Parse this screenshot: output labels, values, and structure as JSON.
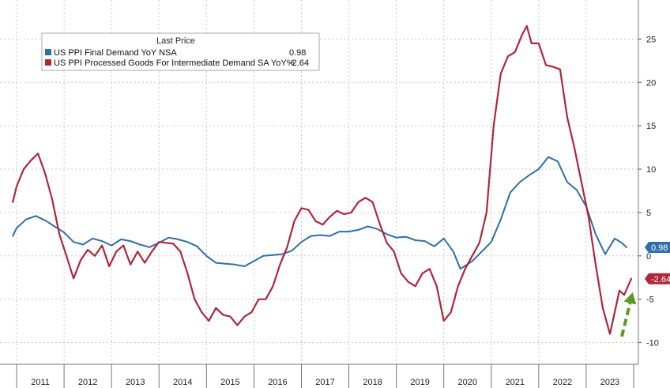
{
  "chart_data": {
    "type": "line",
    "legend": {
      "header": "Last Price",
      "placement": "top-left"
    },
    "series": [
      {
        "name": "US PPI Final Demand YoY NSA",
        "last_value": "0.98",
        "color": "#2f6ea8",
        "points": [
          [
            2010.92,
            2.3
          ],
          [
            2011.0,
            3.2
          ],
          [
            2011.2,
            4.2
          ],
          [
            2011.4,
            4.6
          ],
          [
            2011.6,
            4.1
          ],
          [
            2011.8,
            3.4
          ],
          [
            2012.0,
            2.7
          ],
          [
            2012.2,
            1.6
          ],
          [
            2012.4,
            1.3
          ],
          [
            2012.6,
            2.0
          ],
          [
            2012.8,
            1.7
          ],
          [
            2013.0,
            1.2
          ],
          [
            2013.2,
            1.9
          ],
          [
            2013.4,
            1.7
          ],
          [
            2013.6,
            1.3
          ],
          [
            2013.8,
            1.0
          ],
          [
            2014.0,
            1.5
          ],
          [
            2014.2,
            2.1
          ],
          [
            2014.4,
            1.9
          ],
          [
            2014.6,
            1.6
          ],
          [
            2014.8,
            1.1
          ],
          [
            2015.0,
            0.0
          ],
          [
            2015.2,
            -0.8
          ],
          [
            2015.4,
            -0.9
          ],
          [
            2015.6,
            -1.0
          ],
          [
            2015.8,
            -1.2
          ],
          [
            2016.0,
            -0.6
          ],
          [
            2016.2,
            0.0
          ],
          [
            2016.4,
            0.1
          ],
          [
            2016.6,
            0.2
          ],
          [
            2016.8,
            0.6
          ],
          [
            2017.0,
            1.6
          ],
          [
            2017.2,
            2.3
          ],
          [
            2017.4,
            2.4
          ],
          [
            2017.6,
            2.3
          ],
          [
            2017.8,
            2.8
          ],
          [
            2018.0,
            2.8
          ],
          [
            2018.2,
            3.0
          ],
          [
            2018.4,
            3.4
          ],
          [
            2018.6,
            3.1
          ],
          [
            2018.8,
            2.5
          ],
          [
            2019.0,
            2.1
          ],
          [
            2019.2,
            2.2
          ],
          [
            2019.4,
            1.8
          ],
          [
            2019.6,
            1.7
          ],
          [
            2019.8,
            1.1
          ],
          [
            2020.0,
            2.0
          ],
          [
            2020.2,
            0.5
          ],
          [
            2020.35,
            -1.5
          ],
          [
            2020.6,
            -0.6
          ],
          [
            2020.8,
            0.5
          ],
          [
            2021.0,
            1.6
          ],
          [
            2021.2,
            4.2
          ],
          [
            2021.4,
            7.3
          ],
          [
            2021.6,
            8.5
          ],
          [
            2021.8,
            9.3
          ],
          [
            2022.0,
            10.0
          ],
          [
            2022.2,
            11.4
          ],
          [
            2022.4,
            10.9
          ],
          [
            2022.6,
            8.5
          ],
          [
            2022.8,
            7.6
          ],
          [
            2023.0,
            5.7
          ],
          [
            2023.2,
            2.5
          ],
          [
            2023.4,
            0.2
          ],
          [
            2023.6,
            2.0
          ],
          [
            2023.75,
            1.5
          ],
          [
            2023.85,
            0.98
          ]
        ]
      },
      {
        "name": "US PPI Processed Goods For Intermediate Demand SA YoY%",
        "last_value": "-2.64",
        "color": "#b0263b",
        "points": [
          [
            2010.92,
            6.2
          ],
          [
            2011.0,
            8.0
          ],
          [
            2011.15,
            10.0
          ],
          [
            2011.3,
            11.0
          ],
          [
            2011.45,
            11.8
          ],
          [
            2011.6,
            9.5
          ],
          [
            2011.75,
            6.5
          ],
          [
            2011.9,
            2.5
          ],
          [
            2012.05,
            0.0
          ],
          [
            2012.2,
            -2.6
          ],
          [
            2012.35,
            -0.5
          ],
          [
            2012.5,
            0.7
          ],
          [
            2012.65,
            0.0
          ],
          [
            2012.8,
            1.2
          ],
          [
            2012.95,
            -1.2
          ],
          [
            2013.1,
            0.5
          ],
          [
            2013.25,
            1.2
          ],
          [
            2013.4,
            -1.0
          ],
          [
            2013.55,
            0.5
          ],
          [
            2013.7,
            -0.8
          ],
          [
            2013.85,
            0.5
          ],
          [
            2014.0,
            1.6
          ],
          [
            2014.15,
            1.5
          ],
          [
            2014.3,
            1.4
          ],
          [
            2014.45,
            0.5
          ],
          [
            2014.6,
            -2.0
          ],
          [
            2014.75,
            -5.0
          ],
          [
            2014.9,
            -6.5
          ],
          [
            2015.05,
            -7.5
          ],
          [
            2015.2,
            -6.0
          ],
          [
            2015.35,
            -6.8
          ],
          [
            2015.5,
            -7.0
          ],
          [
            2015.65,
            -8.0
          ],
          [
            2015.8,
            -7.0
          ],
          [
            2015.95,
            -6.5
          ],
          [
            2016.1,
            -5.0
          ],
          [
            2016.25,
            -5.0
          ],
          [
            2016.4,
            -3.5
          ],
          [
            2016.55,
            -1.0
          ],
          [
            2016.7,
            1.0
          ],
          [
            2016.85,
            4.0
          ],
          [
            2017.0,
            5.5
          ],
          [
            2017.15,
            5.3
          ],
          [
            2017.3,
            4.0
          ],
          [
            2017.45,
            3.6
          ],
          [
            2017.6,
            4.5
          ],
          [
            2017.75,
            5.2
          ],
          [
            2017.9,
            4.8
          ],
          [
            2018.05,
            5.0
          ],
          [
            2018.2,
            6.2
          ],
          [
            2018.35,
            6.7
          ],
          [
            2018.5,
            6.2
          ],
          [
            2018.65,
            3.7
          ],
          [
            2018.8,
            1.5
          ],
          [
            2018.95,
            0.5
          ],
          [
            2019.1,
            -2.0
          ],
          [
            2019.25,
            -3.0
          ],
          [
            2019.4,
            -3.5
          ],
          [
            2019.55,
            -2.0
          ],
          [
            2019.7,
            -1.5
          ],
          [
            2019.85,
            -3.5
          ],
          [
            2020.0,
            -7.5
          ],
          [
            2020.15,
            -6.5
          ],
          [
            2020.3,
            -3.5
          ],
          [
            2020.45,
            -1.5
          ],
          [
            2020.6,
            0.0
          ],
          [
            2020.75,
            1.5
          ],
          [
            2020.9,
            5.0
          ],
          [
            2021.05,
            15.0
          ],
          [
            2021.2,
            21.0
          ],
          [
            2021.35,
            23.0
          ],
          [
            2021.5,
            23.5
          ],
          [
            2021.65,
            25.5
          ],
          [
            2021.75,
            26.5
          ],
          [
            2021.85,
            24.5
          ],
          [
            2022.0,
            24.5
          ],
          [
            2022.15,
            22.0
          ],
          [
            2022.3,
            21.8
          ],
          [
            2022.45,
            21.5
          ],
          [
            2022.6,
            16.0
          ],
          [
            2022.75,
            12.5
          ],
          [
            2022.9,
            8.5
          ],
          [
            2023.05,
            4.5
          ],
          [
            2023.2,
            -1.0
          ],
          [
            2023.35,
            -6.0
          ],
          [
            2023.5,
            -9.0
          ],
          [
            2023.6,
            -6.5
          ],
          [
            2023.7,
            -4.0
          ],
          [
            2023.8,
            -4.5
          ],
          [
            2023.88,
            -3.5
          ],
          [
            2023.95,
            -2.64
          ]
        ]
      }
    ],
    "x_ticks": [
      "2011",
      "2012",
      "2013",
      "2014",
      "2015",
      "2016",
      "2017",
      "2018",
      "2019",
      "2020",
      "2021",
      "2022",
      "2023"
    ],
    "y_ticks": [
      "-10",
      "-5",
      "0",
      "5",
      "10",
      "15",
      "20",
      "25"
    ],
    "xlim": [
      2010.65,
      2024.1
    ],
    "ylim": [
      -12.5,
      29.5
    ],
    "grid": true,
    "y_axis_side": "right",
    "annotation": {
      "type": "dashed-arrow",
      "color": "#5a9a1e",
      "from": [
        2023.75,
        -9.3
      ],
      "to": [
        2023.98,
        -4.2
      ]
    }
  }
}
